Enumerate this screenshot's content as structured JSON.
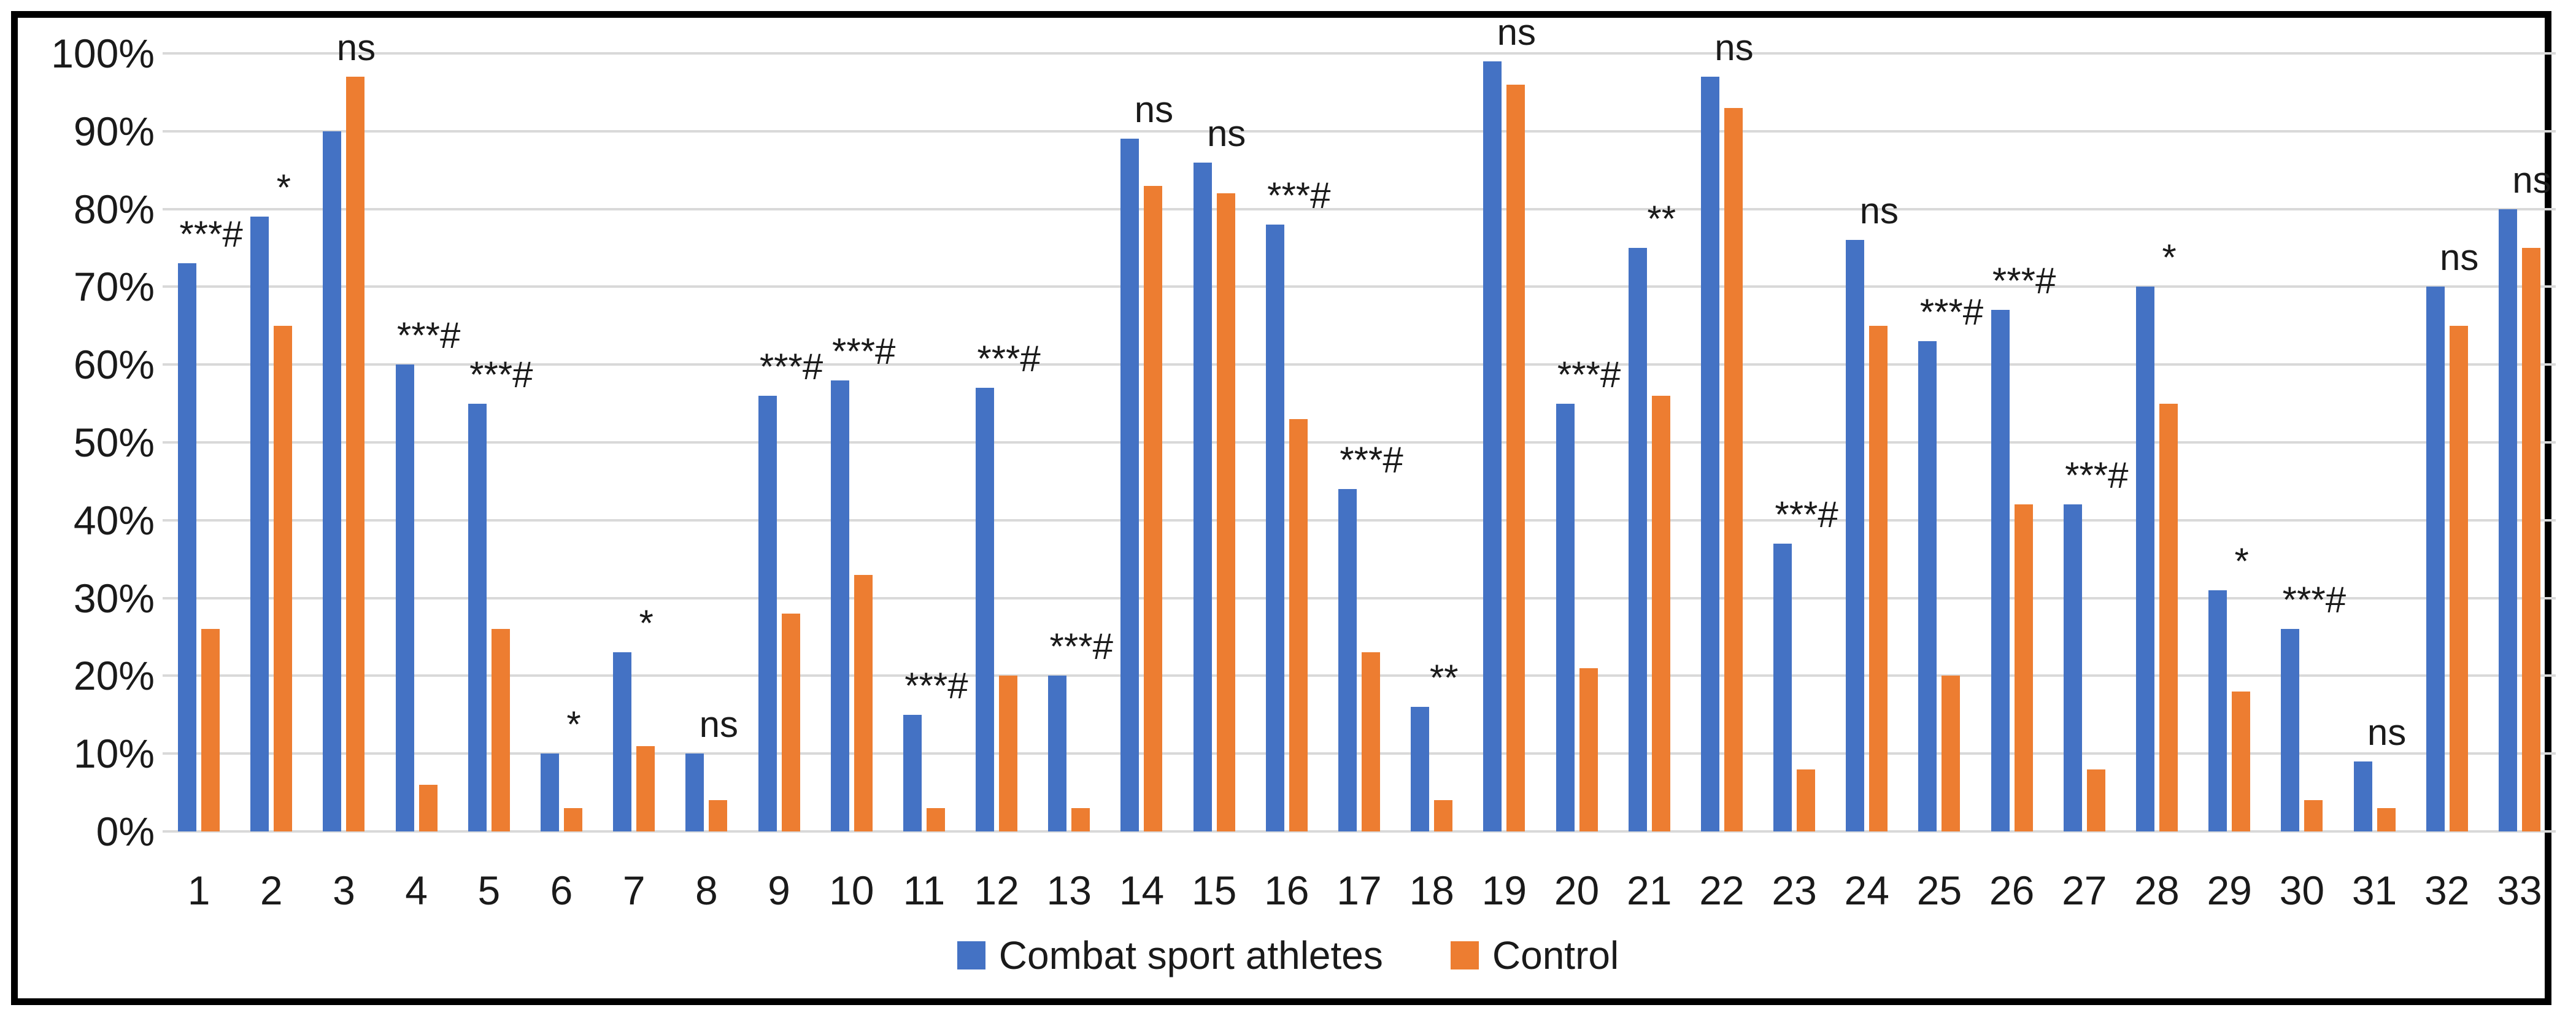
{
  "figure": {
    "background_color": "#ffffff",
    "border_color": "#000000",
    "text_color": "#1a1a1a"
  },
  "chart_data": {
    "type": "bar",
    "title": "",
    "xlabel": "",
    "ylabel": "",
    "categories": [
      "1",
      "2",
      "3",
      "4",
      "5",
      "6",
      "7",
      "8",
      "9",
      "10",
      "11",
      "12",
      "13",
      "14",
      "15",
      "16",
      "17",
      "18",
      "19",
      "20",
      "21",
      "22",
      "23",
      "24",
      "25",
      "26",
      "27",
      "28",
      "29",
      "30",
      "31",
      "32",
      "33"
    ],
    "series": [
      {
        "name": "Combat sport athletes",
        "color": "#4472C4",
        "values": [
          73,
          79,
          90,
          60,
          55,
          10,
          23,
          10,
          56,
          58,
          15,
          57,
          20,
          89,
          86,
          78,
          44,
          16,
          99,
          55,
          75,
          97,
          37,
          76,
          63,
          67,
          42,
          70,
          31,
          26,
          9,
          70,
          80
        ]
      },
      {
        "name": "Control",
        "color": "#ED7D31",
        "values": [
          26,
          65,
          97,
          6,
          26,
          3,
          11,
          4,
          28,
          33,
          3,
          20,
          3,
          83,
          82,
          53,
          23,
          4,
          96,
          21,
          56,
          93,
          8,
          65,
          20,
          42,
          8,
          55,
          18,
          4,
          3,
          65,
          75
        ]
      }
    ],
    "significance_annotations": [
      "***#",
      "*",
      "ns",
      "***#",
      "***#",
      "*",
      "*",
      "ns",
      "***#",
      "***#",
      "***#",
      "***#",
      "***#",
      "ns",
      "ns",
      "***#",
      "***#",
      "**",
      "ns",
      "***#",
      "**",
      "ns",
      "***#",
      "ns",
      "***#",
      "***#",
      "***#",
      "*",
      "*",
      "***#",
      "ns",
      "ns",
      "ns"
    ],
    "y_ticks": [
      "0%",
      "10%",
      "20%",
      "30%",
      "40%",
      "50%",
      "60%",
      "70%",
      "80%",
      "90%",
      "100%"
    ],
    "ylim": [
      0,
      100
    ],
    "grid": true,
    "gridline_color": "#d9d9d9",
    "legend_position": "bottom"
  }
}
